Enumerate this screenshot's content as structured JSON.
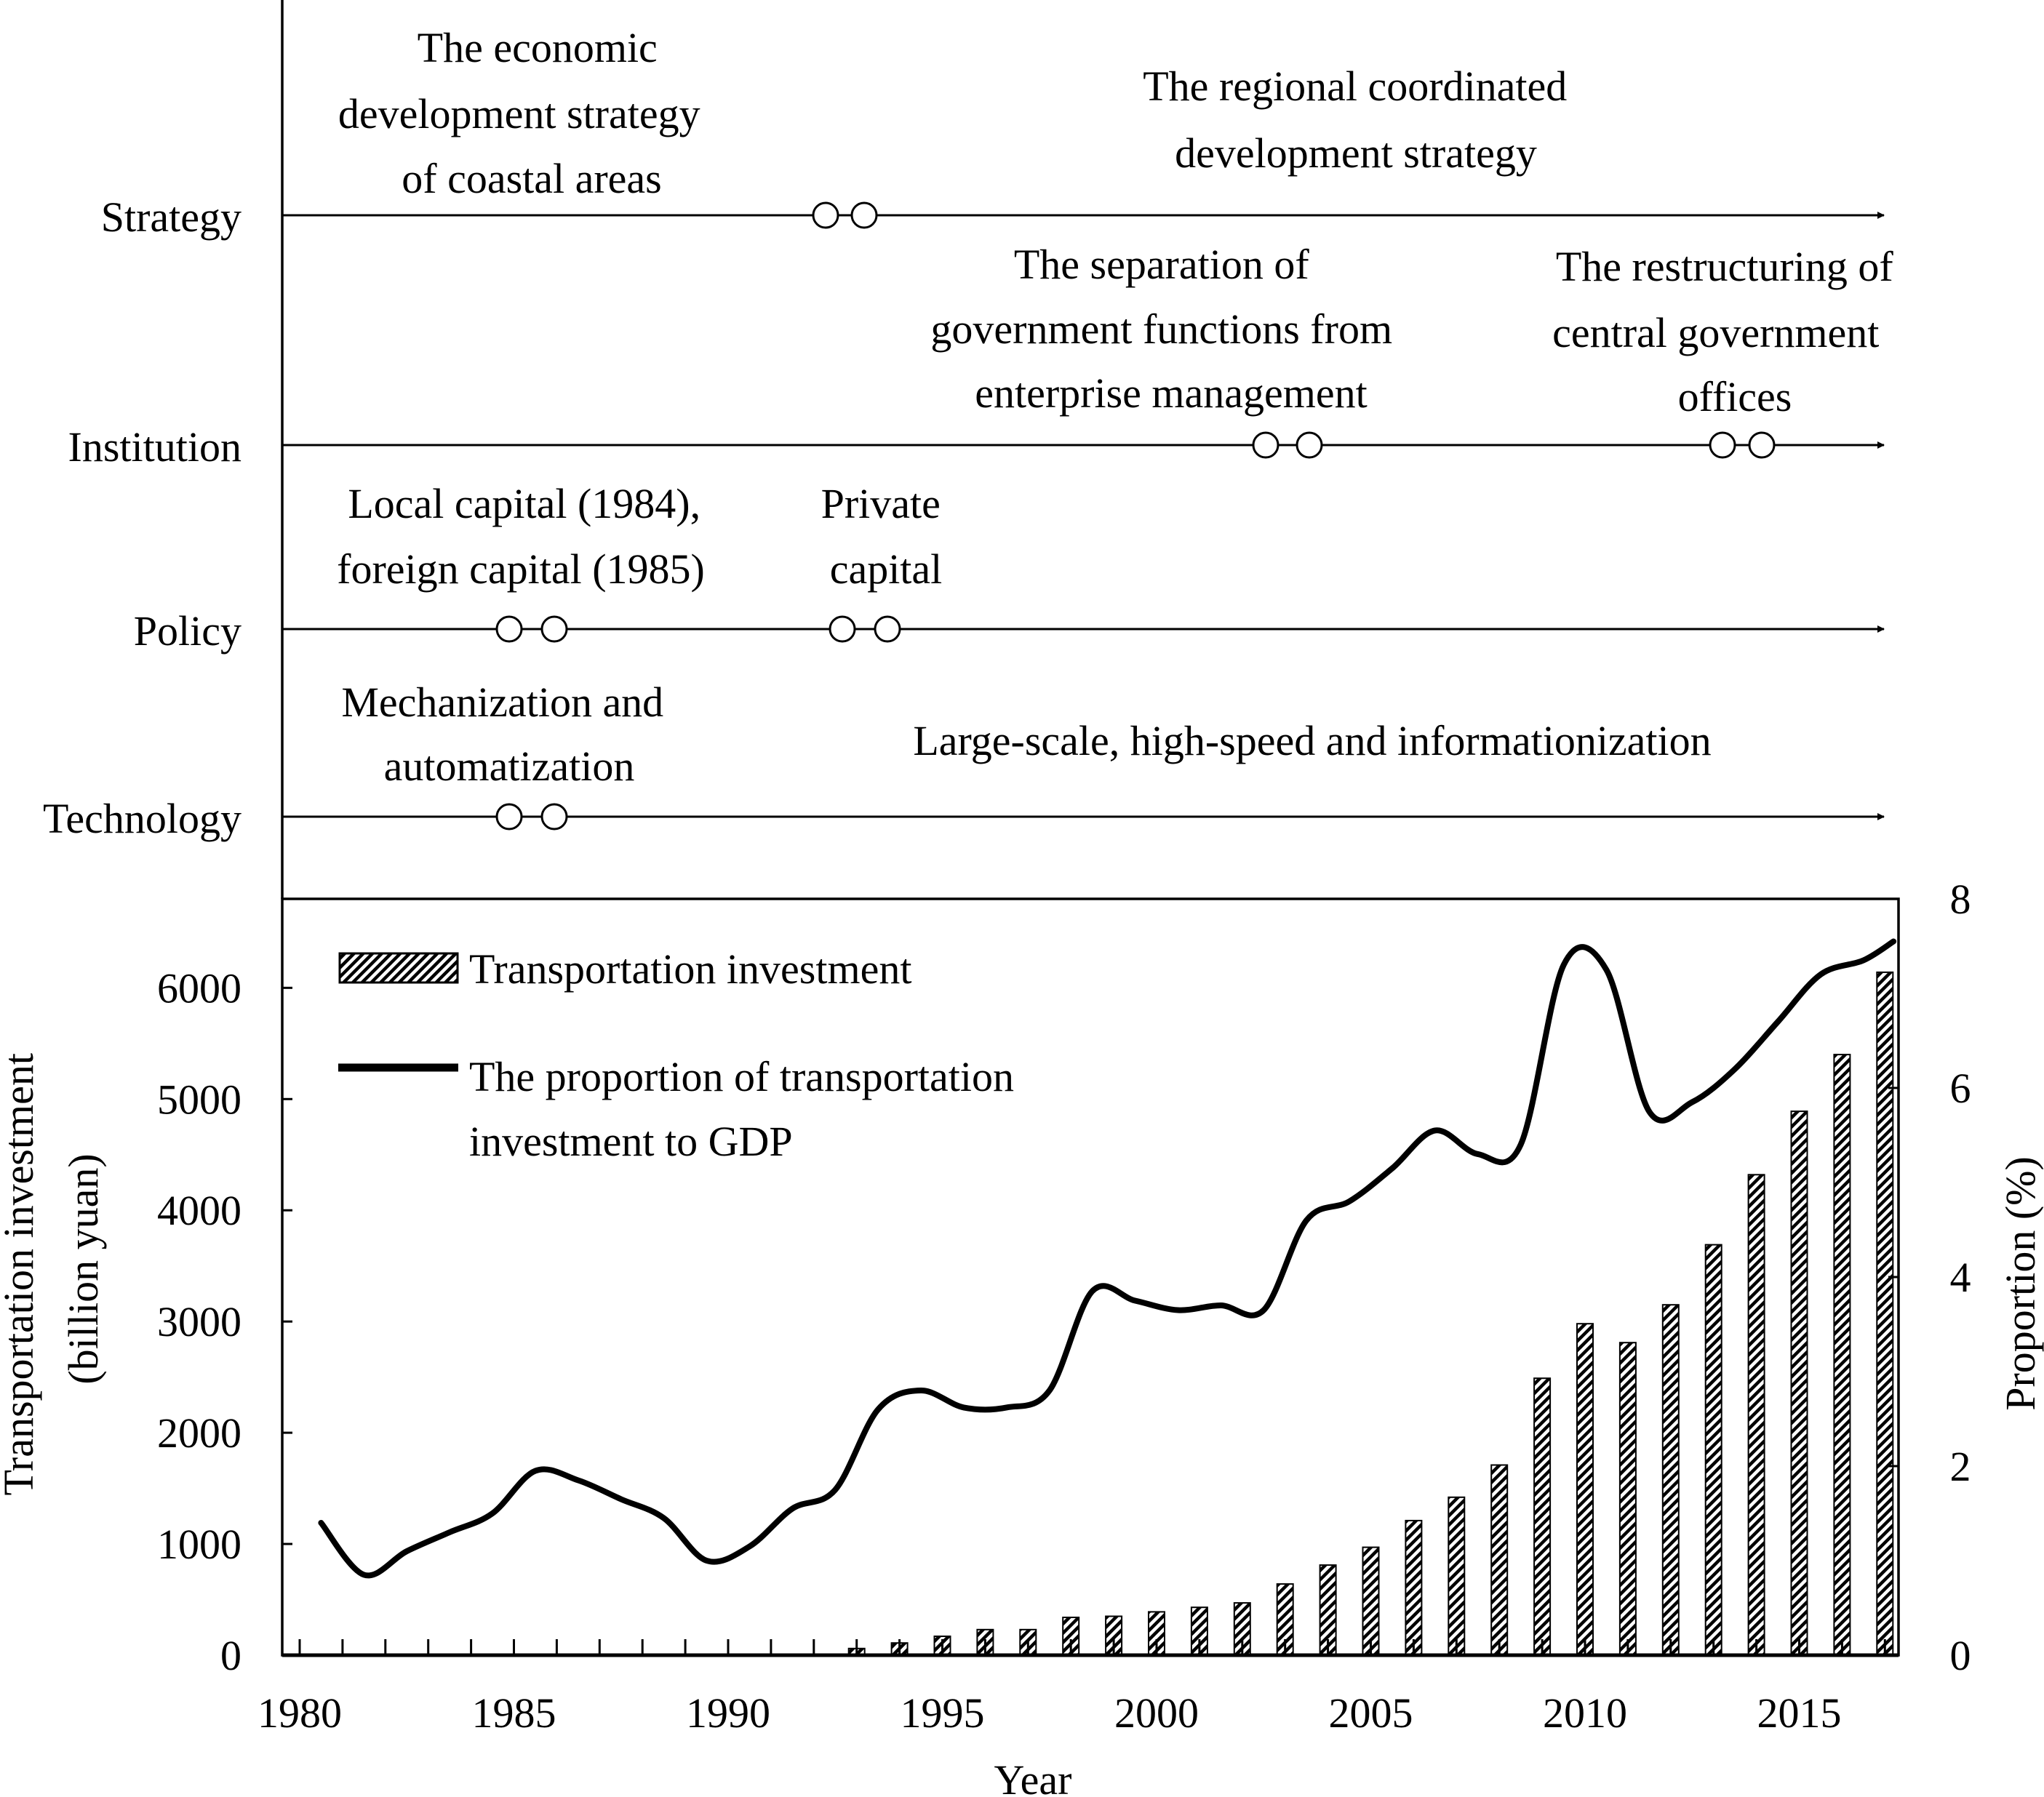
{
  "timeline": {
    "rows": [
      {
        "label": "Strategy",
        "events": [
          {
            "lines": [
              "The economic",
              "development strategy",
              "of coastal areas"
            ]
          },
          {
            "lines": [
              "The regional coordinated",
              "development strategy"
            ]
          }
        ]
      },
      {
        "label": "Institution",
        "events": [
          {
            "lines": [
              "The separation of",
              "government functions from",
              "enterprise management"
            ]
          },
          {
            "lines": [
              "The restructuring of",
              "central government",
              "offices"
            ]
          }
        ]
      },
      {
        "label": "Policy",
        "events": [
          {
            "lines": [
              "Local capital (1984),",
              "foreign capital (1985)"
            ]
          },
          {
            "lines": [
              "Private",
              "capital"
            ]
          }
        ]
      },
      {
        "label": "Technology",
        "events": [
          {
            "lines": [
              "Mechanization and",
              "automatization"
            ]
          },
          {
            "lines": [
              "Large-scale, high-speed and informationization"
            ]
          }
        ]
      }
    ]
  },
  "chart_data": {
    "type": "bar",
    "xlabel": "Year",
    "ylabel": [
      "Transportation investment",
      "(billion yuan)"
    ],
    "y2label": "Proportion (%)",
    "xlim": [
      1980,
      2017.7
    ],
    "ylim": [
      0,
      6800
    ],
    "y2lim": [
      0,
      8.0
    ],
    "x_ticks": [
      1980,
      1985,
      1990,
      1995,
      2000,
      2005,
      2010,
      2015
    ],
    "y_ticks": [
      0,
      1000,
      2000,
      3000,
      4000,
      5000,
      6000
    ],
    "y2_ticks": [
      0,
      2,
      4,
      6,
      8
    ],
    "colors": {
      "bar_stripe": "#000000",
      "bar_fill": "#ffffff",
      "line": "#000000"
    },
    "legend": {
      "position": "top-left",
      "bar_label": "Transportation investment",
      "line_label": [
        "The proportion of transportation",
        "investment to GDP"
      ]
    },
    "bars": {
      "name": "Transportation investment",
      "x": [
        1993,
        1994,
        1995,
        1996,
        1997,
        1998,
        1999,
        2000,
        2001,
        2002,
        2003,
        2004,
        2005,
        2006,
        2007,
        2008,
        2009,
        2010,
        2011,
        2012,
        2013,
        2014,
        2015,
        2016,
        2017
      ],
      "values": [
        60,
        110,
        170,
        230,
        230,
        340,
        350,
        390,
        430,
        470,
        640,
        810,
        970,
        1210,
        1420,
        1710,
        2490,
        2980,
        2810,
        3150,
        3690,
        4320,
        4890,
        5400,
        6140
      ]
    },
    "line": {
      "name": "The proportion of transportation investment to GDP",
      "x": [
        1980.5,
        1981.5,
        1982.5,
        1983.5,
        1984.5,
        1985.5,
        1986.5,
        1987.5,
        1988.5,
        1989.5,
        1990.5,
        1991.5,
        1992.5,
        1993.5,
        1994.5,
        1995.5,
        1996.5,
        1997.5,
        1998.5,
        1999.5,
        2000.5,
        2001.5,
        2002.5,
        2003.5,
        2004.5,
        2005.5,
        2006.5,
        2007.5,
        2008.5,
        2009.5,
        2010.5,
        2011.5,
        2012.5,
        2013.5,
        2014.5,
        2015.5,
        2016.5,
        2017.2
      ],
      "values": [
        1.4,
        0.85,
        1.1,
        1.3,
        1.5,
        1.95,
        1.85,
        1.65,
        1.45,
        1.0,
        1.15,
        1.55,
        1.75,
        2.6,
        2.8,
        2.62,
        2.62,
        2.8,
        3.85,
        3.75,
        3.65,
        3.7,
        3.65,
        4.6,
        4.8,
        5.15,
        5.55,
        5.3,
        5.4,
        7.3,
        7.25,
        5.75,
        5.85,
        6.2,
        6.7,
        7.2,
        7.35,
        7.55
      ]
    }
  }
}
